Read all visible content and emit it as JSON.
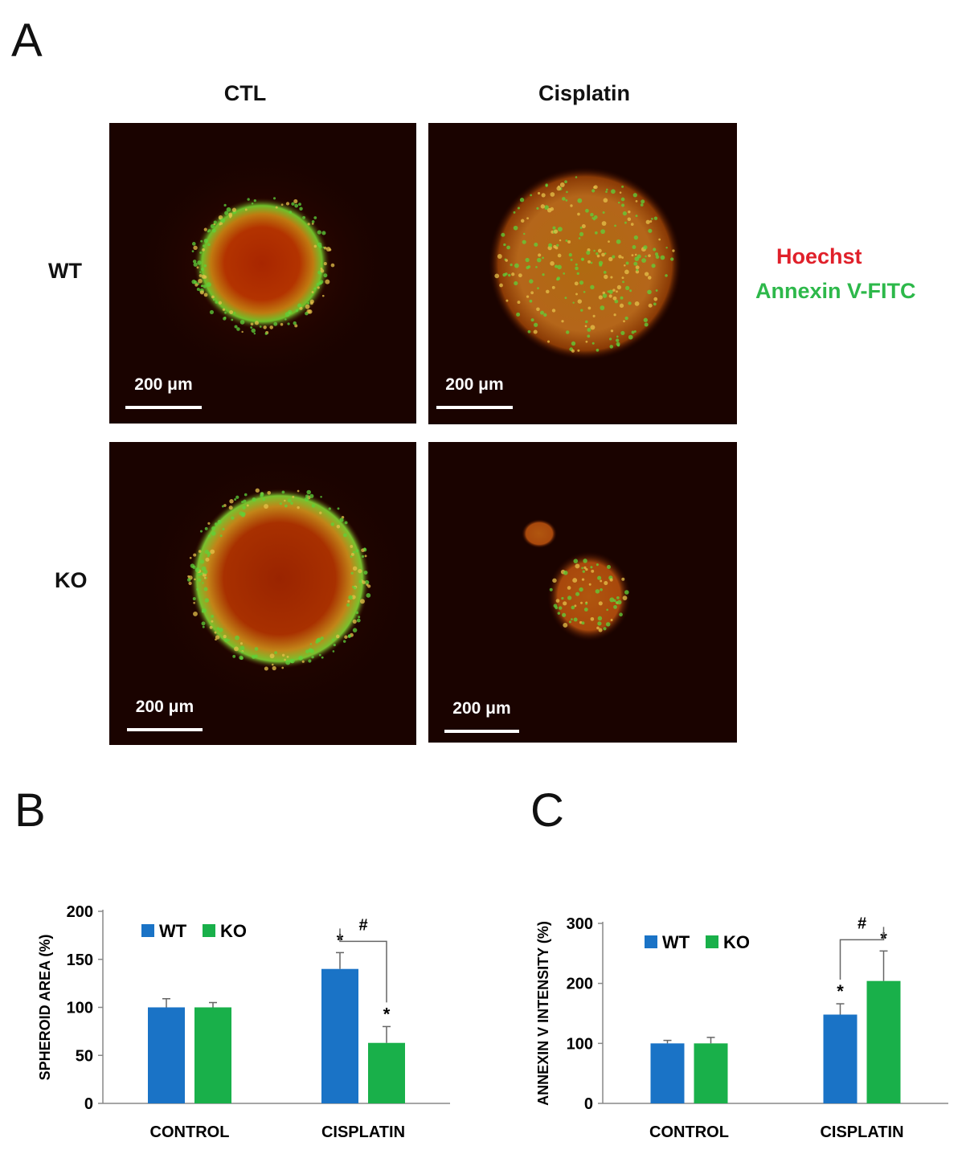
{
  "panel_labels": {
    "a": "A",
    "b": "B",
    "c": "C"
  },
  "micrographs": {
    "columns": [
      "CTL",
      "Cisplatin"
    ],
    "rows": [
      "WT",
      "KO"
    ],
    "scale_bar_label": "200 μm",
    "legend": {
      "hoechst": "Hoechst",
      "annexin": "Annexin V-FITC"
    },
    "colors": {
      "hoechst": "#e0202a",
      "annexin": "#2db84a",
      "background": "#1a0300"
    }
  },
  "chart_data": [
    {
      "type": "bar",
      "id": "B",
      "title": "",
      "ylabel": "SPHEROID AREA (%)",
      "xlabel": "",
      "categories": [
        "CONTROL",
        "CISPLATIN"
      ],
      "ylim": [
        0,
        200
      ],
      "yticks": [
        0,
        50,
        100,
        150,
        200
      ],
      "series": [
        {
          "name": "WT",
          "color": "#1a73c6",
          "values": [
            100,
            140
          ],
          "errors": [
            9,
            17
          ],
          "marks": [
            "",
            "*"
          ]
        },
        {
          "name": "KO",
          "color": "#19b04a",
          "values": [
            100,
            63
          ],
          "errors": [
            5,
            17
          ],
          "marks": [
            "",
            "*"
          ]
        }
      ],
      "significance": {
        "category": "CISPLATIN",
        "label": "#"
      },
      "legend_position": "top-left"
    },
    {
      "type": "bar",
      "id": "C",
      "title": "",
      "ylabel": "ANNEXIN V INTENSITY (%)",
      "xlabel": "",
      "categories": [
        "CONTROL",
        "CISPLATIN"
      ],
      "ylim": [
        0,
        300
      ],
      "yticks": [
        0,
        100,
        200,
        300
      ],
      "series": [
        {
          "name": "WT",
          "color": "#1a73c6",
          "values": [
            100,
            148
          ],
          "errors": [
            5,
            18
          ],
          "marks": [
            "",
            "*"
          ]
        },
        {
          "name": "KO",
          "color": "#19b04a",
          "values": [
            100,
            204
          ],
          "errors": [
            10,
            50
          ],
          "marks": [
            "",
            "*"
          ]
        }
      ],
      "significance": {
        "category": "CISPLATIN",
        "label": "#"
      },
      "legend_position": "top-left"
    }
  ]
}
